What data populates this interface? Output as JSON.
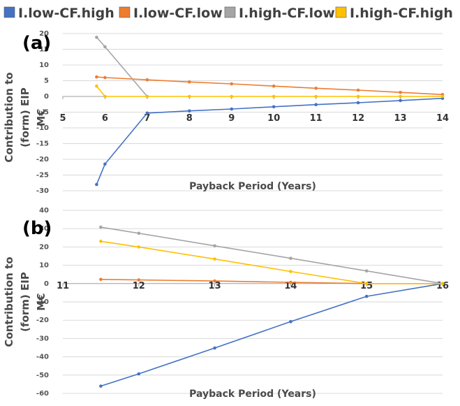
{
  "legend": [
    {
      "name": "I.low-CF.high",
      "color": "#4472C4"
    },
    {
      "name": "I.low-CF.low",
      "color": "#ED7D31"
    },
    {
      "name": "I.high-CF.low",
      "color": "#A5A5A5"
    },
    {
      "name": "I.high-CF.high",
      "color": "#FFC000"
    }
  ],
  "chart_data": [
    {
      "type": "line",
      "panel_label": "(a)",
      "ylabel_line1": "Contribution to",
      "ylabel_line2": "(form) EIP",
      "ylabel_line3": "M€",
      "xlabel": "Payback Period (Years)",
      "xlim": [
        5,
        14
      ],
      "ylim": [
        -30,
        20
      ],
      "xticks": [
        5,
        6,
        7,
        8,
        9,
        10,
        11,
        12,
        13,
        14
      ],
      "yticks": [
        20,
        15,
        10,
        5,
        0,
        -5,
        -10,
        -15,
        -20,
        -25,
        -30
      ],
      "grid": "horizontal",
      "series": [
        {
          "name": "I.low-CF.high",
          "color": "#4472C4",
          "x": [
            5.8,
            6,
            7,
            8,
            9,
            10,
            11,
            12,
            13,
            14
          ],
          "y": [
            -28,
            -21.5,
            -5.3,
            -4.6,
            -4,
            -3.3,
            -2.6,
            -2,
            -1.3,
            -0.6
          ]
        },
        {
          "name": "I.low-CF.low",
          "color": "#ED7D31",
          "x": [
            5.8,
            6,
            7,
            8,
            9,
            10,
            11,
            12,
            13,
            14
          ],
          "y": [
            6.2,
            6,
            5.3,
            4.6,
            4,
            3.3,
            2.6,
            2,
            1.3,
            0.6
          ]
        },
        {
          "name": "I.high-CF.low",
          "color": "#A5A5A5",
          "x": [
            5.8,
            6,
            7
          ],
          "y": [
            18.8,
            15.8,
            0
          ]
        },
        {
          "name": "I.high-CF.high",
          "color": "#FFC000",
          "x": [
            5.8,
            6,
            7,
            8,
            9,
            10,
            11,
            12,
            13,
            14
          ],
          "y": [
            3.3,
            0,
            0,
            0,
            0,
            0,
            0,
            0,
            0,
            0
          ]
        }
      ]
    },
    {
      "type": "line",
      "panel_label": "(b)",
      "ylabel_line1": "Contribution to",
      "ylabel_line2": "(form) EIP",
      "ylabel_line3": "M€",
      "xlabel": "Payback Period (Years)",
      "xlim": [
        11,
        16
      ],
      "ylim": [
        -60,
        40
      ],
      "xticks": [
        11,
        12,
        13,
        14,
        15,
        16
      ],
      "yticks": [
        40,
        30,
        20,
        10,
        0,
        -10,
        -20,
        -30,
        -40,
        -50,
        -60
      ],
      "grid": "horizontal",
      "series": [
        {
          "name": "I.low-CF.high",
          "color": "#4472C4",
          "x": [
            11.5,
            12,
            13,
            14,
            15,
            16
          ],
          "y": [
            -56,
            -49.3,
            -35.2,
            -20.8,
            -7,
            0
          ]
        },
        {
          "name": "I.low-CF.low",
          "color": "#ED7D31",
          "x": [
            11.5,
            12,
            13,
            14,
            15,
            16
          ],
          "y": [
            2.3,
            2,
            1.4,
            0.7,
            0,
            0
          ]
        },
        {
          "name": "I.high-CF.low",
          "color": "#A5A5A5",
          "x": [
            11.5,
            12,
            13,
            14,
            15,
            16
          ],
          "y": [
            30.8,
            27.5,
            20.6,
            13.8,
            6.9,
            0
          ]
        },
        {
          "name": "I.high-CF.high",
          "color": "#FFC000",
          "x": [
            11.5,
            12,
            13,
            14,
            15,
            16
          ],
          "y": [
            23.1,
            20,
            13.4,
            6.6,
            0,
            0
          ]
        }
      ]
    }
  ]
}
